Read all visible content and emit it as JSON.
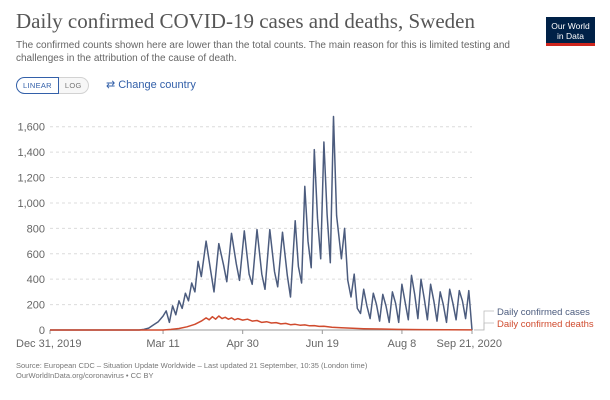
{
  "header": {
    "title": "Daily confirmed COVID-19 cases and deaths, Sweden",
    "subtitle": "The confirmed counts shown here are lower than the total counts. The main reason for this is limited testing and challenges in the attribution of the cause of death.",
    "logo_line1": "Our World",
    "logo_line2": "in Data",
    "logo_colors": {
      "background": "#002147",
      "underline": "#ce261e"
    }
  },
  "controls": {
    "linear_label": "LINEAR",
    "log_label": "LOG",
    "selected_scale": "linear",
    "change_country_label": "Change country",
    "change_country_icon": "swap-arrows-icon",
    "accent": "#3360a9"
  },
  "chart_data": {
    "type": "line",
    "grid": "horizontal-dashed",
    "legend_placement": "right-end-labels",
    "y_ticks": [
      0,
      200,
      400,
      600,
      800,
      1000,
      1200,
      1400,
      1600
    ],
    "y_tick_labels": [
      "0",
      "200",
      "400",
      "600",
      "800",
      "1,000",
      "1,200",
      "1,400",
      "1,600"
    ],
    "ylim": [
      0,
      1700
    ],
    "x_ticks": [
      "Dec 31, 2019",
      "Mar 11",
      "Apr 30",
      "Jun 19",
      "Aug 8",
      "Sep 21, 2020"
    ],
    "xlim": [
      "2019-12-31",
      "2020-09-21"
    ],
    "series": [
      {
        "name": "Daily confirmed cases",
        "color": "#4c5c7e",
        "points": [
          [
            "2019-12-31",
            0
          ],
          [
            "2020-02-25",
            0
          ],
          [
            "2020-02-28",
            5
          ],
          [
            "2020-03-02",
            15
          ],
          [
            "2020-03-05",
            40
          ],
          [
            "2020-03-08",
            65
          ],
          [
            "2020-03-11",
            110
          ],
          [
            "2020-03-13",
            150
          ],
          [
            "2020-03-15",
            60
          ],
          [
            "2020-03-17",
            190
          ],
          [
            "2020-03-19",
            120
          ],
          [
            "2020-03-21",
            230
          ],
          [
            "2020-03-23",
            170
          ],
          [
            "2020-03-25",
            290
          ],
          [
            "2020-03-27",
            230
          ],
          [
            "2020-03-29",
            370
          ],
          [
            "2020-03-31",
            300
          ],
          [
            "2020-04-02",
            540
          ],
          [
            "2020-04-04",
            420
          ],
          [
            "2020-04-07",
            700
          ],
          [
            "2020-04-10",
            460
          ],
          [
            "2020-04-12",
            300
          ],
          [
            "2020-04-15",
            680
          ],
          [
            "2020-04-18",
            510
          ],
          [
            "2020-04-20",
            380
          ],
          [
            "2020-04-23",
            760
          ],
          [
            "2020-04-26",
            520
          ],
          [
            "2020-04-28",
            390
          ],
          [
            "2020-05-01",
            780
          ],
          [
            "2020-05-04",
            440
          ],
          [
            "2020-05-06",
            360
          ],
          [
            "2020-05-09",
            790
          ],
          [
            "2020-05-12",
            440
          ],
          [
            "2020-05-14",
            320
          ],
          [
            "2020-05-17",
            790
          ],
          [
            "2020-05-20",
            460
          ],
          [
            "2020-05-22",
            340
          ],
          [
            "2020-05-25",
            770
          ],
          [
            "2020-05-28",
            430
          ],
          [
            "2020-05-30",
            260
          ],
          [
            "2020-06-02",
            860
          ],
          [
            "2020-06-04",
            500
          ],
          [
            "2020-06-06",
            370
          ],
          [
            "2020-06-08",
            1130
          ],
          [
            "2020-06-10",
            700
          ],
          [
            "2020-06-12",
            490
          ],
          [
            "2020-06-14",
            1420
          ],
          [
            "2020-06-16",
            880
          ],
          [
            "2020-06-18",
            560
          ],
          [
            "2020-06-20",
            1480
          ],
          [
            "2020-06-22",
            910
          ],
          [
            "2020-06-24",
            530
          ],
          [
            "2020-06-26",
            1680
          ],
          [
            "2020-06-28",
            900
          ],
          [
            "2020-07-01",
            560
          ],
          [
            "2020-07-03",
            800
          ],
          [
            "2020-07-05",
            390
          ],
          [
            "2020-07-07",
            260
          ],
          [
            "2020-07-09",
            440
          ],
          [
            "2020-07-11",
            170
          ],
          [
            "2020-07-13",
            130
          ],
          [
            "2020-07-15",
            320
          ],
          [
            "2020-07-17",
            190
          ],
          [
            "2020-07-19",
            90
          ],
          [
            "2020-07-21",
            290
          ],
          [
            "2020-07-23",
            200
          ],
          [
            "2020-07-25",
            70
          ],
          [
            "2020-07-27",
            280
          ],
          [
            "2020-07-29",
            190
          ],
          [
            "2020-07-31",
            60
          ],
          [
            "2020-08-02",
            300
          ],
          [
            "2020-08-04",
            210
          ],
          [
            "2020-08-06",
            60
          ],
          [
            "2020-08-08",
            360
          ],
          [
            "2020-08-10",
            220
          ],
          [
            "2020-08-12",
            80
          ],
          [
            "2020-08-14",
            430
          ],
          [
            "2020-08-16",
            280
          ],
          [
            "2020-08-18",
            90
          ],
          [
            "2020-08-20",
            400
          ],
          [
            "2020-08-22",
            250
          ],
          [
            "2020-08-24",
            80
          ],
          [
            "2020-08-26",
            360
          ],
          [
            "2020-08-28",
            230
          ],
          [
            "2020-08-30",
            70
          ],
          [
            "2020-09-01",
            300
          ],
          [
            "2020-09-03",
            200
          ],
          [
            "2020-09-05",
            60
          ],
          [
            "2020-09-07",
            320
          ],
          [
            "2020-09-09",
            210
          ],
          [
            "2020-09-11",
            80
          ],
          [
            "2020-09-13",
            310
          ],
          [
            "2020-09-15",
            230
          ],
          [
            "2020-09-17",
            90
          ],
          [
            "2020-09-19",
            310
          ],
          [
            "2020-09-21",
            0
          ]
        ]
      },
      {
        "name": "Daily confirmed deaths",
        "color": "#d04b2e",
        "points": [
          [
            "2019-12-31",
            0
          ],
          [
            "2020-03-11",
            0
          ],
          [
            "2020-03-16",
            5
          ],
          [
            "2020-03-21",
            12
          ],
          [
            "2020-03-26",
            25
          ],
          [
            "2020-03-31",
            45
          ],
          [
            "2020-04-04",
            70
          ],
          [
            "2020-04-07",
            95
          ],
          [
            "2020-04-09",
            80
          ],
          [
            "2020-04-11",
            105
          ],
          [
            "2020-04-13",
            85
          ],
          [
            "2020-04-15",
            110
          ],
          [
            "2020-04-17",
            90
          ],
          [
            "2020-04-19",
            100
          ],
          [
            "2020-04-21",
            85
          ],
          [
            "2020-04-23",
            95
          ],
          [
            "2020-04-25",
            80
          ],
          [
            "2020-04-27",
            90
          ],
          [
            "2020-04-30",
            78
          ],
          [
            "2020-05-03",
            85
          ],
          [
            "2020-05-06",
            70
          ],
          [
            "2020-05-09",
            75
          ],
          [
            "2020-05-12",
            60
          ],
          [
            "2020-05-15",
            65
          ],
          [
            "2020-05-18",
            55
          ],
          [
            "2020-05-21",
            58
          ],
          [
            "2020-05-24",
            48
          ],
          [
            "2020-05-27",
            52
          ],
          [
            "2020-05-30",
            42
          ],
          [
            "2020-06-02",
            45
          ],
          [
            "2020-06-05",
            38
          ],
          [
            "2020-06-08",
            40
          ],
          [
            "2020-06-11",
            33
          ],
          [
            "2020-06-14",
            35
          ],
          [
            "2020-06-17",
            28
          ],
          [
            "2020-06-20",
            30
          ],
          [
            "2020-06-25",
            22
          ],
          [
            "2020-07-01",
            18
          ],
          [
            "2020-07-08",
            13
          ],
          [
            "2020-07-15",
            10
          ],
          [
            "2020-07-25",
            8
          ],
          [
            "2020-08-05",
            5
          ],
          [
            "2020-08-20",
            3
          ],
          [
            "2020-09-05",
            2
          ],
          [
            "2020-09-21",
            1
          ]
        ]
      }
    ]
  },
  "footer": {
    "source_line": "Source: European CDC – Situation Update Worldwide – Last updated 21 September, 10:35 (London time)",
    "url_line": "OurWorldInData.org/coronavirus • CC BY"
  }
}
